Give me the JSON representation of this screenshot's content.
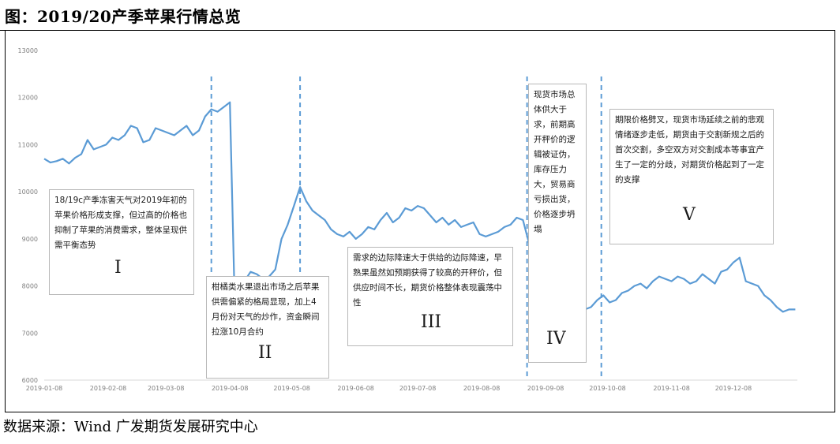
{
  "header": {
    "title": "图：2019/20产季苹果行情总览"
  },
  "footer": {
    "source": "数据来源：Wind 广发期货发展研究中心"
  },
  "colors": {
    "line": "#5b9bd5",
    "divider": "#5b9bd5",
    "axis_text": "#7f7f7f",
    "box_border": "#b8b8b8"
  },
  "chart_data": {
    "type": "line",
    "title": "",
    "xlabel": "",
    "ylabel": "",
    "ylim": [
      6000,
      13000
    ],
    "yticks": [
      6000,
      7000,
      8000,
      9000,
      10000,
      11000,
      12000,
      13000
    ],
    "xticks": [
      "2019-01-08",
      "2019-02-08",
      "2019-03-08",
      "2019-04-08",
      "2019-05-08",
      "2019-06-08",
      "2019-07-08",
      "2019-08-08",
      "2019-09-08",
      "2019-10-08",
      "2019-11-08",
      "2019-12-08"
    ],
    "grid": false,
    "legend": "none",
    "series": [
      {
        "x": [
          "2019-01-08",
          "2019-01-11",
          "2019-01-14",
          "2019-01-17",
          "2019-01-20",
          "2019-01-23",
          "2019-01-26",
          "2019-01-29",
          "2019-02-01",
          "2019-02-04",
          "2019-02-07",
          "2019-02-10",
          "2019-02-13",
          "2019-02-16",
          "2019-02-19",
          "2019-02-22",
          "2019-02-25",
          "2019-02-28",
          "2019-03-03",
          "2019-03-06",
          "2019-03-09",
          "2019-03-12",
          "2019-03-15",
          "2019-03-18",
          "2019-03-21",
          "2019-03-24",
          "2019-03-27",
          "2019-03-30",
          "2019-04-02",
          "2019-04-05",
          "2019-04-08",
          "2019-04-10",
          "2019-04-12",
          "2019-04-15",
          "2019-04-18",
          "2019-04-21",
          "2019-04-24",
          "2019-04-27",
          "2019-04-30",
          "2019-05-03",
          "2019-05-06",
          "2019-05-09",
          "2019-05-12",
          "2019-05-15",
          "2019-05-18",
          "2019-05-21",
          "2019-05-24",
          "2019-05-27",
          "2019-05-30",
          "2019-06-02",
          "2019-06-05",
          "2019-06-08",
          "2019-06-11",
          "2019-06-14",
          "2019-06-17",
          "2019-06-20",
          "2019-06-23",
          "2019-06-26",
          "2019-06-29",
          "2019-07-02",
          "2019-07-05",
          "2019-07-08",
          "2019-07-11",
          "2019-07-14",
          "2019-07-17",
          "2019-07-20",
          "2019-07-23",
          "2019-07-26",
          "2019-07-29",
          "2019-08-01",
          "2019-08-04",
          "2019-08-07",
          "2019-08-10",
          "2019-08-13",
          "2019-08-16",
          "2019-08-19",
          "2019-08-22",
          "2019-08-25",
          "2019-08-28",
          "2019-08-31",
          "2019-09-03",
          "2019-09-06",
          "2019-09-09",
          "2019-09-12",
          "2019-09-15",
          "2019-09-18",
          "2019-09-21",
          "2019-09-24",
          "2019-09-27",
          "2019-09-30",
          "2019-10-03",
          "2019-10-06",
          "2019-10-09",
          "2019-10-12",
          "2019-10-15",
          "2019-10-18",
          "2019-10-21",
          "2019-10-24",
          "2019-10-27",
          "2019-10-30",
          "2019-11-02",
          "2019-11-05",
          "2019-11-08",
          "2019-11-11",
          "2019-11-14",
          "2019-11-17",
          "2019-11-20",
          "2019-11-23",
          "2019-11-26",
          "2019-11-29",
          "2019-12-02",
          "2019-12-05",
          "2019-12-08",
          "2019-12-11",
          "2019-12-14",
          "2019-12-17",
          "2019-12-20",
          "2019-12-23",
          "2019-12-26",
          "2019-12-29",
          "2020-01-01",
          "2020-01-04",
          "2020-01-07"
        ],
        "values": [
          10700,
          10620,
          10650,
          10700,
          10600,
          10720,
          10800,
          11100,
          10900,
          10950,
          11000,
          11150,
          11100,
          11200,
          11400,
          11350,
          11050,
          11100,
          11350,
          11300,
          11250,
          11200,
          11300,
          11400,
          11200,
          11300,
          11600,
          11750,
          11700,
          11800,
          11900,
          8200,
          7900,
          8100,
          8300,
          8250,
          8150,
          8200,
          8350,
          9000,
          9300,
          9700,
          10100,
          9800,
          9600,
          9500,
          9400,
          9200,
          9100,
          9050,
          9150,
          9000,
          9100,
          9250,
          9200,
          9400,
          9550,
          9350,
          9450,
          9650,
          9600,
          9700,
          9650,
          9500,
          9350,
          9450,
          9300,
          9400,
          9250,
          9300,
          9350,
          9100,
          9050,
          9100,
          9150,
          9250,
          9300,
          9450,
          9400,
          8900,
          8600,
          8400,
          8000,
          7900,
          7800,
          7750,
          7650,
          7600,
          7500,
          7550,
          7700,
          7800,
          7650,
          7700,
          7850,
          7900,
          8000,
          8050,
          7950,
          8100,
          8200,
          8150,
          8100,
          8200,
          8150,
          8050,
          8100,
          8250,
          8150,
          8050,
          8300,
          8350,
          8500,
          8600,
          8100,
          8050,
          8000,
          7800,
          7700,
          7550,
          7450,
          7500,
          7500
        ]
      }
    ],
    "dividers": [
      "2019-03-30",
      "2019-05-12",
      "2019-08-30",
      "2019-10-05"
    ],
    "annotations": [
      {
        "numeral": "I",
        "text": "18/19c产季冻害天气对2019年初的苹果价格形成支撑，但过高的价格也抑制了苹果的消费需求，整体呈现供需平衡态势"
      },
      {
        "numeral": "II",
        "text": "柑橘类水果退出市场之后苹果供需偏紧的格局显现，加上4月份对天气的炒作，资金瞬间拉涨10月合约"
      },
      {
        "numeral": "III",
        "text": "需求的边际降速大于供给的边际降速，早熟果虽然如预期获得了较高的开秤价，但供应时间不长，期货价格整体表现震荡中性"
      },
      {
        "numeral": "IV",
        "text": "现货市场总体供大于求，前期高开秤价的逻辑被证伪，库存压力大，贸易商亏损出货，价格逐步坍塌"
      },
      {
        "numeral": "V",
        "text": "期限价格劈叉，现货市场延续之前的悲观情绪逐步走低，期货由于交割新规之后的首次交割，多空双方对交割成本等事宜产生了一定的分歧，对期货价格起到了一定的支撑"
      }
    ]
  }
}
